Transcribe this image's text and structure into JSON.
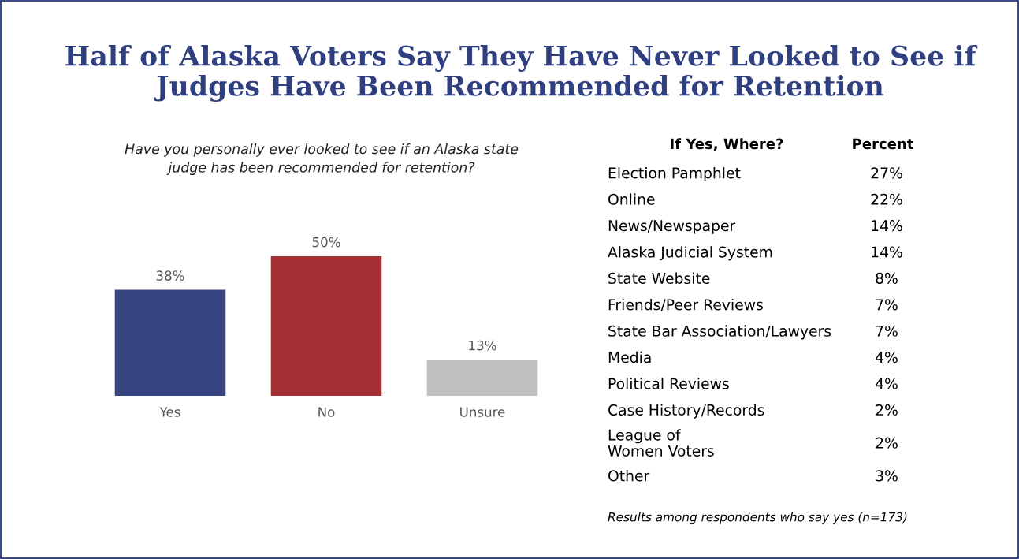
{
  "chart_data": [
    {
      "type": "bar",
      "title": "Half of Alaska Voters Say They Have Never Looked to See if\nJudges Have Been Recommended for Retention",
      "subtitle": "Have you personally ever looked to see if an Alaska state\njudge has been recommended for retention?",
      "categories": [
        "Yes",
        "No",
        "Unsure"
      ],
      "values": [
        38,
        50,
        13
      ],
      "colors": [
        "#36457f",
        "#a33032",
        "#bfbfbf"
      ],
      "value_labels": [
        "38%",
        "50%",
        "13%"
      ]
    },
    {
      "type": "other",
      "categories": [
        "Election Pamphlet",
        "Online",
        "News/Newspaper",
        "Alaska Judicial System",
        "State Website",
        "Friends/Peer Reviews",
        "State Bar Association/Lawyers",
        "Media",
        "Political Reviews",
        "Case History/Records",
        "League of\nWomen Voters",
        "Other"
      ],
      "value_labels": [
        "27%",
        "22%",
        "14%",
        "14%",
        "8%",
        "7%",
        "7%",
        "4%",
        "4%",
        "2%",
        "2%",
        "3%"
      ],
      "annotations": [
        "If Yes, Where?",
        "Percent",
        "Results among respondents who say yes (n=173)"
      ]
    }
  ]
}
